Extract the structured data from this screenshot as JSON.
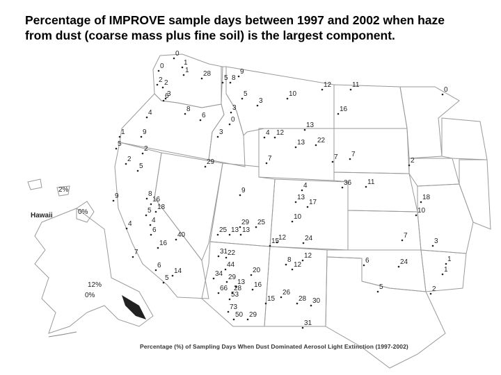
{
  "title": "Percentage of IMPROVE sample days between 1997 and 2002 when haze from dust (coarse mass plus fine soil) is the largest component.",
  "caption": "Percentage (%) of Sampling Days When Dust Dominated Aerosol Light Extinction (1997-2002)",
  "inset_labels": {
    "hawaii": "Hawaii",
    "hawaii_value_1": "2%",
    "hawaii_value_2": "0%",
    "alaska_value_1": "12%",
    "alaska_value_2": "0%"
  },
  "site_values": [
    "0",
    "1",
    "0",
    "1",
    "28",
    "2",
    "2",
    "9",
    "5",
    "8",
    "3",
    "6",
    "5",
    "3",
    "10",
    "12",
    "11",
    "0",
    "4",
    "8",
    "6",
    "3",
    "0",
    "16",
    "13",
    "1",
    "9",
    "3",
    "4",
    "12",
    "13",
    "22",
    "5",
    "2",
    "7",
    "7",
    "7",
    "2",
    "2",
    "5",
    "29",
    "4",
    "36",
    "11",
    "9",
    "13",
    "17",
    "18",
    "9",
    "8",
    "16",
    "18",
    "10",
    "5",
    "4",
    "10",
    "4",
    "6",
    "25",
    "13",
    "29",
    "25",
    "13",
    "7",
    "40",
    "12",
    "15",
    "24",
    "16",
    "3",
    "7",
    "31",
    "22",
    "12",
    "1",
    "6",
    "14",
    "8",
    "12",
    "6",
    "24",
    "1",
    "44",
    "34",
    "20",
    "5",
    "29",
    "13",
    "16",
    "5",
    "66",
    "28",
    "53",
    "2",
    "15",
    "26",
    "28",
    "30",
    "73",
    "50",
    "29",
    "31"
  ]
}
